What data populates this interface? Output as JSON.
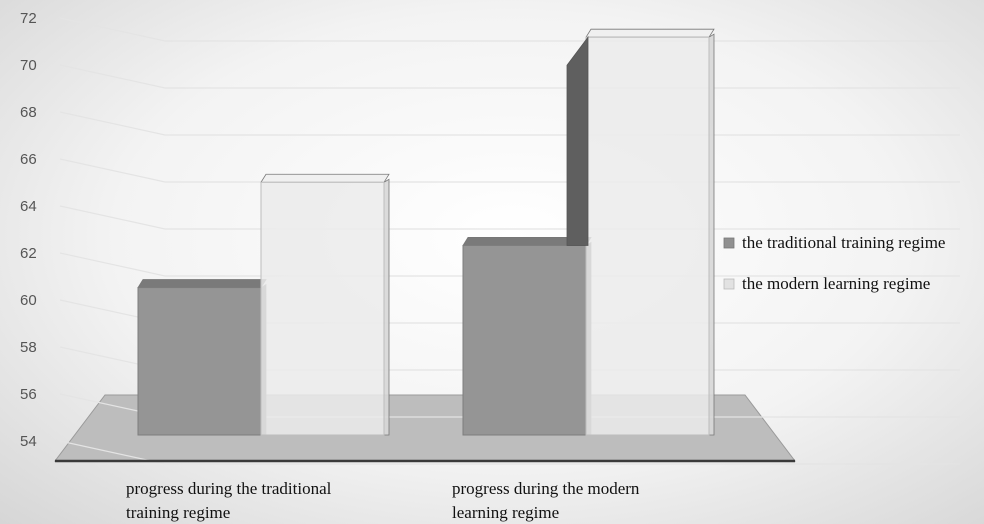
{
  "chart_data": {
    "type": "bar",
    "categories": [
      [
        "progress during the traditional",
        "training regime"
      ],
      [
        "progress during the modern",
        "learning regime"
      ]
    ],
    "series": [
      {
        "name": "the traditional training regime",
        "values": [
          60.3,
          62.1
        ],
        "color": "#909090"
      },
      {
        "name": "the modern learning regime",
        "values": [
          64.8,
          71.0
        ],
        "color": "#e2e2e2"
      }
    ],
    "ylim": [
      54,
      72
    ],
    "yticks": [
      54,
      56,
      58,
      60,
      62,
      64,
      66,
      68,
      70,
      72
    ],
    "grid": true,
    "style": "3d-clustered",
    "legend": "right"
  }
}
